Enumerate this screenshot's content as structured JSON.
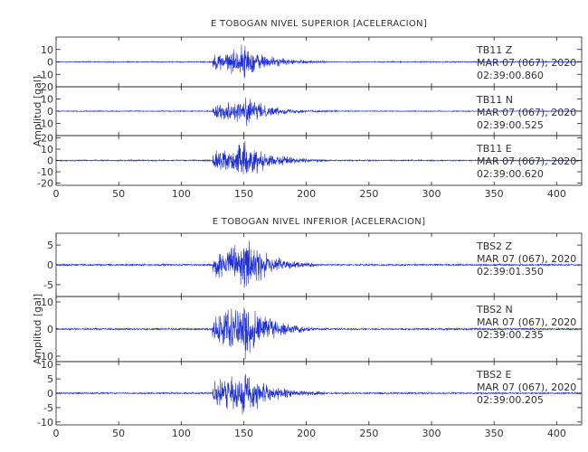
{
  "chart_data": [
    {
      "type": "line",
      "title": "E TOBOGAN NIVEL SUPERIOR [ACELERACION]",
      "ylabel": "Amplitud [gal]",
      "xlim": [
        0,
        420
      ],
      "x_ticks": [
        0,
        50,
        100,
        150,
        200,
        250,
        300,
        350,
        400
      ],
      "panels": [
        {
          "station": "TB11",
          "component": "Z",
          "date": "MAR 07 (067), 2020",
          "time": "02:39:00.860",
          "ylim": [
            -20,
            20
          ],
          "y_ticks": [
            -10,
            0,
            10
          ],
          "y_tick_labels": [
            "-10",
            "0",
            "10"
          ],
          "onset": 125,
          "peak_time": 147,
          "peak": 14,
          "coda_end": 215
        },
        {
          "station": "TB11",
          "component": "N",
          "date": "MAR 07 (067), 2020",
          "time": "02:39:00.525",
          "ylim": [
            -20,
            20
          ],
          "y_ticks": [
            -10,
            0,
            10,
            20
          ],
          "y_tick_labels": [
            "-10",
            "0",
            "10",
            "20"
          ],
          "onset": 125,
          "peak_time": 148,
          "peak": 12,
          "coda_end": 225
        },
        {
          "station": "TB11",
          "component": "E",
          "date": "MAR 07 (067), 2020",
          "time": "02:39:00.620",
          "ylim": [
            -22,
            22
          ],
          "y_ticks": [
            -20,
            -10,
            0,
            10,
            20
          ],
          "y_tick_labels": [
            "-20",
            "-10",
            "0",
            "10",
            "20"
          ],
          "onset": 125,
          "peak_time": 148,
          "peak": 18,
          "coda_end": 215
        }
      ]
    },
    {
      "type": "line",
      "title": "E TOBOGAN NIVEL INFERIOR [ACELERACION]",
      "ylabel": "Amplitud [gal]",
      "xlim": [
        0,
        420
      ],
      "x_ticks": [
        0,
        50,
        100,
        150,
        200,
        250,
        300,
        350,
        400
      ],
      "panels": [
        {
          "station": "TBS2",
          "component": "Z",
          "date": "MAR 07 (067), 2020",
          "time": "02:39:01.350",
          "ylim": [
            -8,
            8
          ],
          "y_ticks": [
            -5,
            0,
            5
          ],
          "y_tick_labels": [
            "-5",
            "0",
            "5"
          ],
          "onset": 125,
          "peak_time": 148,
          "peak": 7,
          "coda_end": 210
        },
        {
          "station": "TBS2",
          "component": "N",
          "date": "MAR 07 (067), 2020",
          "time": "02:39:00.235",
          "ylim": [
            -12,
            12
          ],
          "y_ticks": [
            -10,
            0,
            10
          ],
          "y_tick_labels": [
            "-10",
            "0",
            "10"
          ],
          "onset": 125,
          "peak_time": 147,
          "peak": 11,
          "coda_end": 205
        },
        {
          "station": "TBS2",
          "component": "E",
          "date": "MAR 07 (067), 2020",
          "time": "02:39:00.205",
          "ylim": [
            -11,
            11
          ],
          "y_ticks": [
            -10,
            -5,
            0,
            5,
            10
          ],
          "y_tick_labels": [
            "-10",
            "-5",
            "0",
            "5",
            "10"
          ],
          "onset": 125,
          "peak_time": 147,
          "peak": 9,
          "coda_end": 215
        }
      ]
    }
  ],
  "style": {
    "trace_color": "#1f2fd6",
    "axis_color": "#222222"
  }
}
